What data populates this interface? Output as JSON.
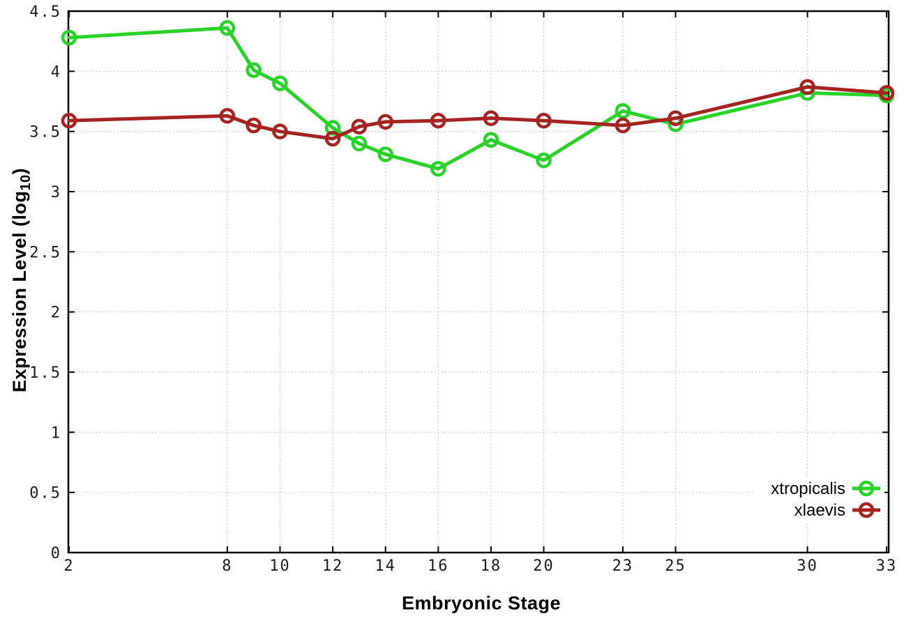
{
  "figure": {
    "background": "#ffffff"
  },
  "labels": {
    "y_axis_prefix": "Expression Level (log",
    "y_axis_sub": "10",
    "y_axis_suffix": ")",
    "x_axis": "Embryonic Stage"
  },
  "chart_data": {
    "type": "line",
    "title": "",
    "xlabel": "Embryonic Stage",
    "ylabel": "Expression Level (log10)",
    "xlim": [
      2,
      33
    ],
    "ylim": [
      0,
      4.5
    ],
    "grid": true,
    "grid_style": "dotted",
    "legend_position": "bottom-right",
    "x_ticks": [
      2,
      8,
      10,
      12,
      14,
      16,
      18,
      20,
      23,
      25,
      30,
      33
    ],
    "x_tick_labels": [
      "2",
      "8",
      "10",
      "12",
      "14",
      "16",
      "18",
      "20",
      "23",
      "25",
      "30",
      "33"
    ],
    "y_ticks": [
      0,
      0.5,
      1,
      1.5,
      2,
      2.5,
      3,
      3.5,
      4,
      4.5
    ],
    "y_tick_labels": [
      "0",
      "0.5",
      "1",
      "1.5",
      "2",
      "2.5",
      "3",
      "3.5",
      "4",
      "4.5"
    ],
    "x": [
      2,
      8,
      9,
      10,
      12,
      13,
      14,
      16,
      18,
      20,
      23,
      25,
      30,
      33
    ],
    "series": [
      {
        "name": "xtropicalis",
        "color": "#28d228",
        "marker": "open-circle",
        "values": [
          4.28,
          4.36,
          4.01,
          3.9,
          3.53,
          3.4,
          3.31,
          3.19,
          3.43,
          3.26,
          3.67,
          3.56,
          3.82,
          3.8
        ]
      },
      {
        "name": "xlaevis",
        "color": "#a52321",
        "marker": "open-circle",
        "values": [
          3.59,
          3.63,
          3.55,
          3.5,
          3.44,
          3.54,
          3.58,
          3.59,
          3.61,
          3.59,
          3.55,
          3.61,
          3.87,
          3.82
        ]
      }
    ],
    "colors": {
      "grid": "#bdbdbd",
      "axis": "#000000",
      "tick_text": "#1b1b1b",
      "legend_text": "#000000"
    }
  }
}
